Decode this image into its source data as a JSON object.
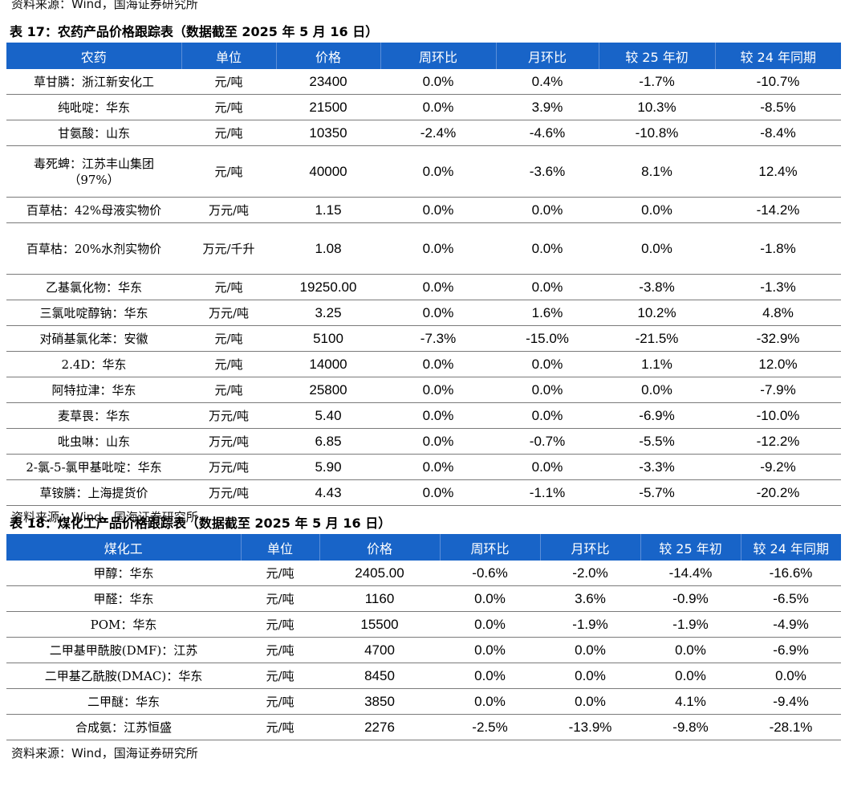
{
  "table17": {
    "source_top": "资料来源：Wind，国海证券研究所",
    "caption": "表 17：农药产品价格跟踪表（数据截至 2025 年 5 月 16 日）",
    "headers": [
      "农药",
      "单位",
      "价格",
      "周环比",
      "月环比",
      "较 25 年初",
      "较 24 年同期"
    ],
    "rows": [
      [
        "草甘膦：浙江新安化工",
        "元/吨",
        "23400",
        "0.0%",
        "0.4%",
        "-1.7%",
        "-10.7%"
      ],
      [
        "纯吡啶：华东",
        "元/吨",
        "21500",
        "0.0%",
        "3.9%",
        "10.3%",
        "-8.5%"
      ],
      [
        "甘氨酸：山东",
        "元/吨",
        "10350",
        "-2.4%",
        "-4.6%",
        "-10.8%",
        "-8.4%"
      ],
      [
        "毒死蜱：江苏丰山集团（97%）",
        "元/吨",
        "40000",
        "0.0%",
        "-3.6%",
        "8.1%",
        "12.4%"
      ],
      [
        "百草枯：42%母液实物价",
        "万元/吨",
        "1.15",
        "0.0%",
        "0.0%",
        "0.0%",
        "-14.2%"
      ],
      [
        "百草枯：20%水剂实物价",
        "万元/千升",
        "1.08",
        "0.0%",
        "0.0%",
        "0.0%",
        "-1.8%"
      ],
      [
        "乙基氯化物：华东",
        "元/吨",
        "19250.00",
        "0.0%",
        "0.0%",
        "-3.8%",
        "-1.3%"
      ],
      [
        "三氯吡啶醇钠：华东",
        "万元/吨",
        "3.25",
        "0.0%",
        "1.6%",
        "10.2%",
        "4.8%"
      ],
      [
        "对硝基氯化苯：安徽",
        "元/吨",
        "5100",
        "-7.3%",
        "-15.0%",
        "-21.5%",
        "-32.9%"
      ],
      [
        "2.4D：华东",
        "元/吨",
        "14000",
        "0.0%",
        "0.0%",
        "1.1%",
        "12.0%"
      ],
      [
        "阿特拉津：华东",
        "元/吨",
        "25800",
        "0.0%",
        "0.0%",
        "0.0%",
        "-7.9%"
      ],
      [
        "麦草畏：华东",
        "万元/吨",
        "5.40",
        "0.0%",
        "0.0%",
        "-6.9%",
        "-10.0%"
      ],
      [
        "吡虫啉：山东",
        "万元/吨",
        "6.85",
        "0.0%",
        "-0.7%",
        "-5.5%",
        "-12.2%"
      ],
      [
        "2-氯-5-氯甲基吡啶：华东",
        "万元/吨",
        "5.90",
        "0.0%",
        "0.0%",
        "-3.3%",
        "-9.2%"
      ],
      [
        "草铵膦：上海提货价",
        "万元/吨",
        "4.43",
        "0.0%",
        "-1.1%",
        "-5.7%",
        "-20.2%"
      ]
    ],
    "source": "资料来源：Wind，国海证券研究所"
  },
  "table18": {
    "caption": "表 18：煤化工产品价格跟踪表（数据截至 2025 年 5 月 16 日）",
    "headers": [
      "煤化工",
      "单位",
      "价格",
      "周环比",
      "月环比",
      "较 25 年初",
      "较 24 年同期"
    ],
    "rows": [
      [
        "甲醇：华东",
        "元/吨",
        "2405.00",
        "-0.6%",
        "-2.0%",
        "-14.4%",
        "-16.6%"
      ],
      [
        "甲醛：华东",
        "元/吨",
        "1160",
        "0.0%",
        "3.6%",
        "-0.9%",
        "-6.5%"
      ],
      [
        "POM：华东",
        "元/吨",
        "15500",
        "0.0%",
        "-1.9%",
        "-1.9%",
        "-4.9%"
      ],
      [
        "二甲基甲酰胺(DMF)：江苏",
        "元/吨",
        "4700",
        "0.0%",
        "0.0%",
        "0.0%",
        "-6.9%"
      ],
      [
        "二甲基乙酰胺(DMAC)：华东",
        "元/吨",
        "8450",
        "0.0%",
        "0.0%",
        "0.0%",
        "0.0%"
      ],
      [
        "二甲醚：华东",
        "元/吨",
        "3850",
        "0.0%",
        "0.0%",
        "4.1%",
        "-9.4%"
      ],
      [
        "合成氨：江苏恒盛",
        "元/吨",
        "2276",
        "-2.5%",
        "-13.9%",
        "-9.8%",
        "-28.1%"
      ]
    ],
    "source": "资料来源：Wind，国海证券研究所"
  }
}
